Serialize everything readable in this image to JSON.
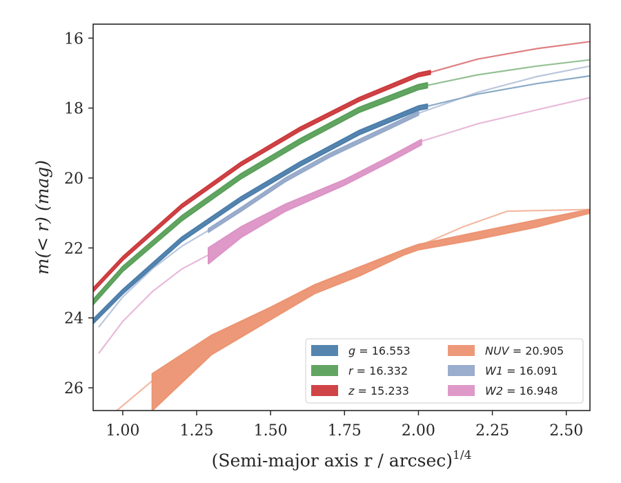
{
  "chart_data": {
    "type": "line",
    "ylabel": "m(< r) (mag)",
    "xlabel": "(Semi-major axis r / arcsec)",
    "xlabel_exponent": "1/4",
    "xlim": [
      0.9,
      2.58
    ],
    "ylim": [
      26.65,
      15.6
    ],
    "y_inverted": true,
    "xticks": [
      "1.00",
      "1.25",
      "1.50",
      "1.75",
      "2.00",
      "2.25",
      "2.50"
    ],
    "yticks": [
      "16",
      "18",
      "20",
      "22",
      "24",
      "26"
    ],
    "grid": false,
    "legend_placement": "lower-right",
    "series": [
      {
        "name": "g = 16.553",
        "legend_symbol": "g",
        "legend_value": "16.553",
        "color": "#4c7eab",
        "x": [
          0.9,
          1.0,
          1.2,
          1.4,
          1.6,
          1.8,
          2.0,
          2.03
        ],
        "y": [
          24.1,
          23.25,
          21.75,
          20.6,
          19.6,
          18.7,
          18.0,
          17.95
        ],
        "band": 0.12,
        "extrapolation": {
          "x": [
            2.03,
            2.2,
            2.4,
            2.58
          ],
          "y": [
            17.95,
            17.6,
            17.3,
            17.08
          ]
        }
      },
      {
        "name": "r = 16.332",
        "legend_symbol": "r",
        "legend_value": "16.332",
        "color": "#5aa05a",
        "x": [
          0.9,
          1.0,
          1.2,
          1.4,
          1.6,
          1.8,
          2.0,
          2.03
        ],
        "y": [
          23.55,
          22.6,
          21.15,
          19.95,
          18.95,
          18.05,
          17.4,
          17.35
        ],
        "band": 0.14,
        "extrapolation": {
          "x": [
            2.03,
            2.2,
            2.4,
            2.58
          ],
          "y": [
            17.35,
            17.05,
            16.8,
            16.62
          ]
        }
      },
      {
        "name": "z = 15.233",
        "legend_symbol": "z",
        "legend_value": "15.233",
        "color": "#cc3a3d",
        "x": [
          0.9,
          1.0,
          1.2,
          1.4,
          1.6,
          1.8,
          2.0,
          2.04
        ],
        "y": [
          23.2,
          22.3,
          20.8,
          19.6,
          18.6,
          17.75,
          17.05,
          16.98
        ],
        "band": 0.1,
        "extrapolation": {
          "x": [
            2.04,
            2.2,
            2.4,
            2.58
          ],
          "y": [
            16.98,
            16.6,
            16.3,
            16.1
          ]
        }
      },
      {
        "name": "NUV = 20.905",
        "legend_symbol": "NUV",
        "legend_value": "20.905",
        "color": "#ec9472",
        "x": [
          1.1,
          1.3,
          1.5,
          1.65,
          1.8,
          1.95,
          2.0,
          2.2,
          2.4,
          2.58
        ],
        "y_upper": [
          25.6,
          24.5,
          23.7,
          23.05,
          22.55,
          22.05,
          21.9,
          21.55,
          21.2,
          20.9
        ],
        "y_lower": [
          26.65,
          25.05,
          24.05,
          23.3,
          22.8,
          22.2,
          22.05,
          21.75,
          21.4,
          21.0
        ],
        "extrapolation": {
          "x": [
            0.98,
            1.1,
            1.3,
            1.5,
            1.7,
            2.0,
            2.15,
            2.3,
            2.58
          ],
          "y": [
            26.65,
            25.8,
            24.6,
            23.7,
            22.9,
            21.95,
            21.4,
            20.95,
            20.9
          ]
        }
      },
      {
        "name": "W1 = 16.091",
        "legend_symbol": "W1",
        "legend_value": "16.091",
        "color": "#95a9c9",
        "x": [
          1.29,
          1.4,
          1.55,
          1.7,
          1.85,
          2.0
        ],
        "y_upper": [
          21.45,
          20.85,
          20.0,
          19.3,
          18.7,
          18.1
        ],
        "y_lower": [
          21.55,
          20.95,
          20.1,
          19.4,
          18.8,
          18.2
        ],
        "extrapolation": {
          "x": [
            0.92,
            1.0,
            1.1,
            1.2,
            1.29
          ],
          "y": [
            24.25,
            23.4,
            22.6,
            21.95,
            21.5
          ]
        },
        "extrapolation_right": {
          "x": [
            2.0,
            2.2,
            2.4,
            2.58
          ],
          "y": [
            18.15,
            17.55,
            17.1,
            16.8
          ]
        }
      },
      {
        "name": "W2 = 16.948",
        "legend_symbol": "W2",
        "legend_value": "16.948",
        "color": "#dc94c6",
        "x": [
          1.29,
          1.4,
          1.55,
          1.75,
          1.9,
          2.01
        ],
        "y_upper": [
          22.0,
          21.4,
          20.75,
          20.05,
          19.4,
          18.9
        ],
        "y_lower": [
          22.45,
          21.7,
          20.95,
          20.2,
          19.55,
          19.05
        ],
        "extrapolation": {
          "x": [
            0.92,
            1.0,
            1.1,
            1.2,
            1.29
          ],
          "y": [
            25.0,
            24.1,
            23.25,
            22.6,
            22.2
          ]
        },
        "extrapolation_right": {
          "x": [
            2.01,
            2.2,
            2.4,
            2.58
          ],
          "y": [
            18.95,
            18.45,
            18.05,
            17.7
          ]
        }
      }
    ]
  }
}
